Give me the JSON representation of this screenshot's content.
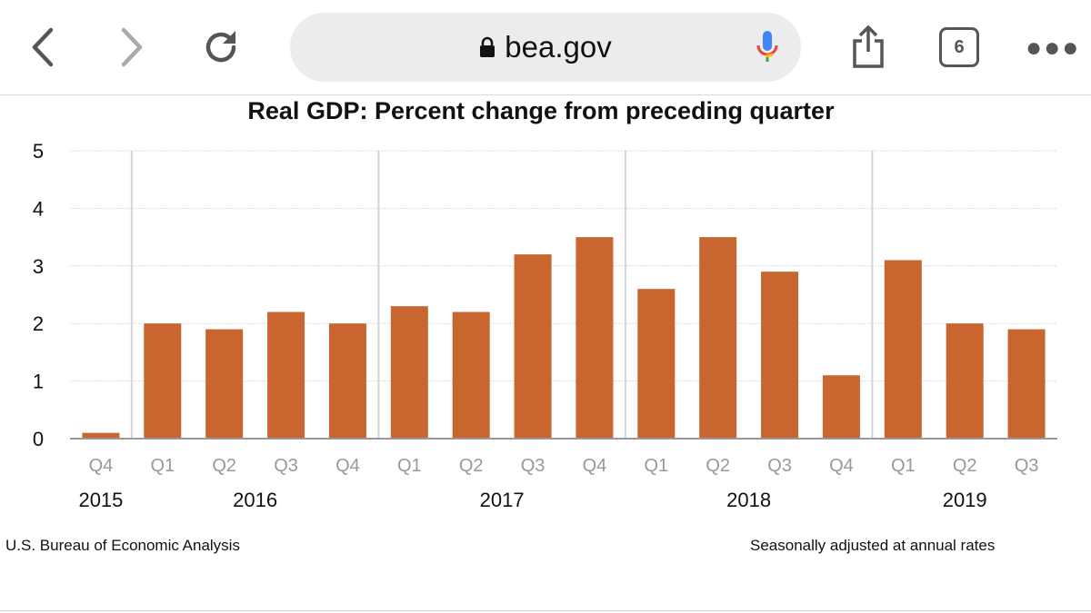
{
  "browser": {
    "url": "bea.gov",
    "tab_count": "6",
    "icons": [
      "back-icon",
      "forward-icon",
      "reload-icon",
      "lock-icon",
      "mic-icon",
      "share-icon",
      "tabs-icon",
      "more-icon"
    ]
  },
  "footer": {
    "source": "U.S. Bureau of Economic Analysis",
    "note": "Seasonally adjusted at annual rates"
  },
  "chart_data": {
    "type": "bar",
    "title": "Real GDP:  Percent change from preceding quarter",
    "xlabel": "",
    "ylabel": "",
    "ylim": [
      0,
      5
    ],
    "yticks": [
      "0",
      "1",
      "2",
      "3",
      "4",
      "5"
    ],
    "grid": true,
    "categories": [
      "Q4",
      "Q1",
      "Q2",
      "Q3",
      "Q4",
      "Q1",
      "Q2",
      "Q3",
      "Q4",
      "Q1",
      "Q2",
      "Q3",
      "Q4",
      "Q1",
      "Q2",
      "Q3"
    ],
    "years": [
      {
        "label": "2015",
        "start": 0,
        "end": 0
      },
      {
        "label": "2016",
        "start": 1,
        "end": 4
      },
      {
        "label": "2017",
        "start": 5,
        "end": 8
      },
      {
        "label": "2018",
        "start": 9,
        "end": 12
      },
      {
        "label": "2019",
        "start": 13,
        "end": 15
      }
    ],
    "values": [
      0.1,
      2.0,
      1.9,
      2.2,
      2.0,
      2.3,
      2.2,
      3.2,
      3.5,
      2.6,
      3.5,
      2.9,
      1.1,
      3.1,
      2.0,
      1.9
    ],
    "bar_color": "#c96630"
  }
}
